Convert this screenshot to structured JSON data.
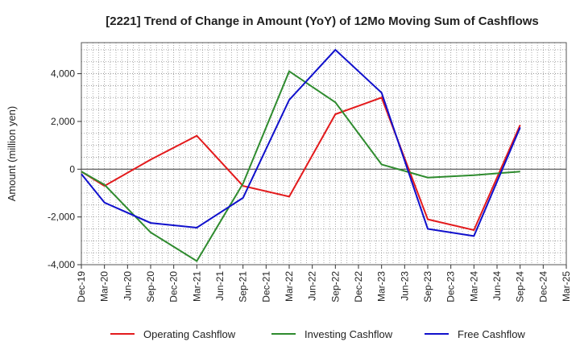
{
  "chart_data": {
    "type": "line",
    "title": "[2221]  Trend of Change in Amount (YoY) of 12Mo Moving Sum of Cashflows",
    "xlabel": "",
    "ylabel": "Amount (million yen)",
    "ylim": [
      -4000,
      5300
    ],
    "yticks": [
      -4000,
      -2000,
      0,
      2000,
      4000
    ],
    "ytick_labels": [
      "-4,000",
      "-2,000",
      "0",
      "2,000",
      "4,000"
    ],
    "categories": [
      "Dec-19",
      "Mar-20",
      "Jun-20",
      "Sep-20",
      "Dec-20",
      "Mar-21",
      "Jun-21",
      "Sep-21",
      "Dec-21",
      "Mar-22",
      "Jun-22",
      "Sep-22",
      "Dec-22",
      "Mar-23",
      "Jun-23",
      "Sep-23",
      "Dec-23",
      "Mar-24",
      "Jun-24",
      "Sep-24",
      "Dec-24",
      "Mar-25"
    ],
    "grid": true,
    "legend_position": "bottom",
    "series": [
      {
        "name": "Operating Cashflow",
        "color": "#e31a1c",
        "values": [
          -100,
          -700,
          null,
          400,
          null,
          1400,
          null,
          -700,
          null,
          -1150,
          null,
          2300,
          null,
          3000,
          null,
          -2100,
          null,
          -2550,
          null,
          1850,
          null,
          null
        ]
      },
      {
        "name": "Investing Cashflow",
        "color": "#2e8b2e",
        "values": [
          -100,
          -650,
          null,
          -2650,
          null,
          -3850,
          null,
          -600,
          null,
          4100,
          null,
          2800,
          null,
          200,
          null,
          -350,
          null,
          -250,
          null,
          -100,
          null,
          null
        ]
      },
      {
        "name": "Free Cashflow",
        "color": "#1010cc",
        "values": [
          -200,
          -1400,
          null,
          -2250,
          null,
          -2450,
          null,
          -1200,
          null,
          2900,
          null,
          5000,
          null,
          3200,
          null,
          -2500,
          null,
          -2800,
          null,
          1750,
          null,
          null
        ]
      }
    ]
  }
}
